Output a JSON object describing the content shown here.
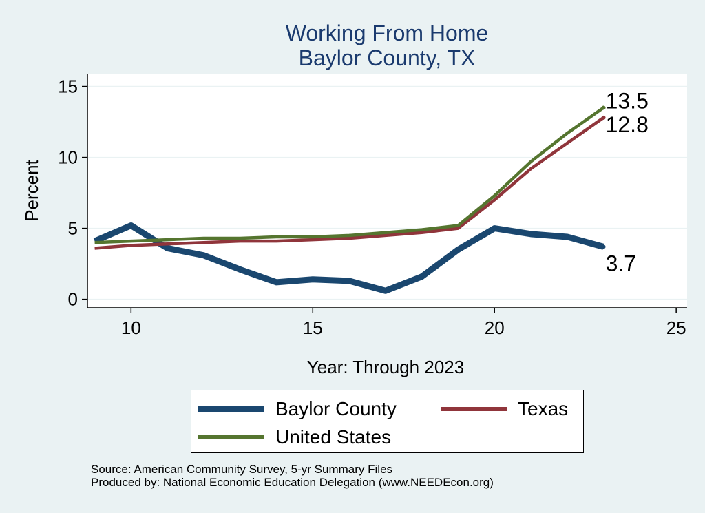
{
  "chart_data": {
    "type": "line",
    "title": "Working From Home",
    "subtitle": "Baylor County, TX",
    "xlabel": "Year: Through 2023",
    "ylabel": "Percent",
    "xlim": [
      8.8,
      25.3
    ],
    "ylim": [
      -0.6,
      15.9
    ],
    "xticks": [
      10,
      15,
      20,
      25
    ],
    "yticks": [
      0,
      5,
      10,
      15
    ],
    "grid": true,
    "legend_position": "bottom",
    "series": [
      {
        "name": "Baylor County",
        "color": "#1a476f",
        "x": [
          9,
          10,
          11,
          12,
          13,
          14,
          15,
          16,
          17,
          18,
          19,
          20,
          21,
          22,
          23
        ],
        "y": [
          4.1,
          5.2,
          3.6,
          3.1,
          2.1,
          1.2,
          1.4,
          1.3,
          0.6,
          1.6,
          3.5,
          5.0,
          4.6,
          4.4,
          3.7
        ],
        "end_label": "3.7"
      },
      {
        "name": "Texas",
        "color": "#90353b",
        "x": [
          9,
          10,
          11,
          12,
          13,
          14,
          15,
          16,
          17,
          18,
          19,
          20,
          21,
          22,
          23
        ],
        "y": [
          3.6,
          3.8,
          3.9,
          4.0,
          4.1,
          4.1,
          4.2,
          4.3,
          4.5,
          4.7,
          5.0,
          7.0,
          9.2,
          11.0,
          12.8
        ],
        "end_label": "12.8"
      },
      {
        "name": "United States",
        "color": "#55752f",
        "x": [
          9,
          10,
          11,
          12,
          13,
          14,
          15,
          16,
          17,
          18,
          19,
          20,
          21,
          22,
          23
        ],
        "y": [
          4.0,
          4.1,
          4.2,
          4.3,
          4.3,
          4.4,
          4.4,
          4.5,
          4.7,
          4.9,
          5.2,
          7.3,
          9.7,
          11.7,
          13.5
        ],
        "end_label": "13.5"
      }
    ]
  },
  "legend": {
    "items": [
      "Baylor County",
      "Texas",
      "United States"
    ]
  },
  "footer": {
    "source": "Source: American Community Survey, 5-yr Summary Files",
    "produced_by": "Produced by: National Economic Education Delegation (www.NEEDEcon.org)"
  }
}
